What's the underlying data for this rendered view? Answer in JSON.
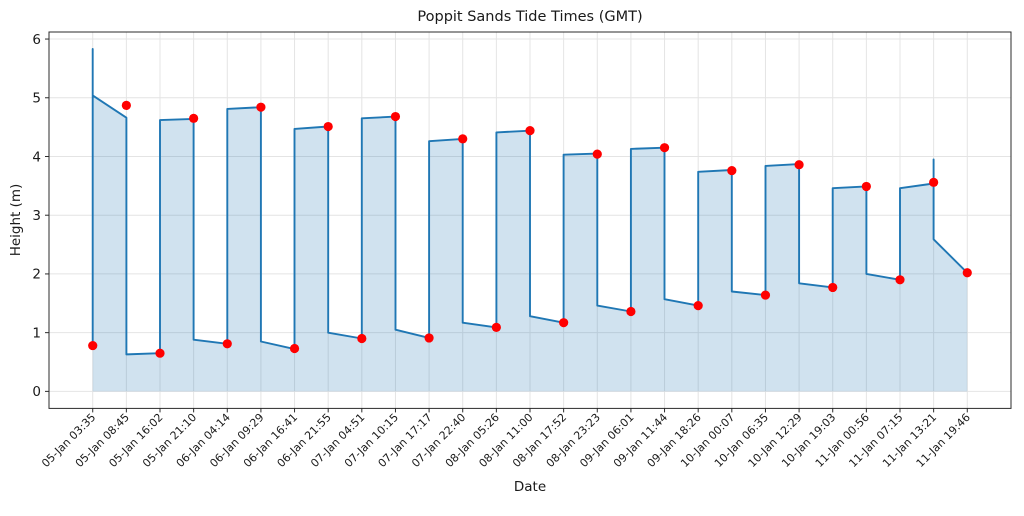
{
  "chart_data": {
    "type": "line",
    "title": "Poppit Sands Tide Times (GMT)",
    "xlabel": "Date",
    "ylabel": "Height (m)",
    "grid": true,
    "legend": false,
    "ylim": [
      -0.29,
      6.12
    ],
    "yticks": [
      0,
      1,
      2,
      3,
      4,
      5,
      6
    ],
    "x_margin": 1.3,
    "categories": [
      "05-Jan 03:35",
      "05-Jan 08:45",
      "05-Jan 16:02",
      "05-Jan 21:10",
      "06-Jan 04:14",
      "06-Jan 09:29",
      "06-Jan 16:41",
      "06-Jan 21:55",
      "07-Jan 04:51",
      "07-Jan 10:15",
      "07-Jan 17:17",
      "07-Jan 22:40",
      "08-Jan 05:26",
      "08-Jan 11:00",
      "08-Jan 17:52",
      "08-Jan 23:23",
      "09-Jan 06:01",
      "09-Jan 11:44",
      "09-Jan 18:26",
      "10-Jan 00:07",
      "10-Jan 06:35",
      "10-Jan 12:29",
      "10-Jan 19:03",
      "11-Jan 00:56",
      "11-Jan 07:15",
      "11-Jan 13:21",
      "11-Jan 19:46"
    ],
    "series": [
      {
        "name": "tide-height-line",
        "type": "area-line",
        "color": "#1f77b4",
        "fill_alpha": 0.21,
        "fill_to": 0,
        "line_width": 1.9,
        "vertices": [
          [
            0,
            0.78
          ],
          [
            0,
            5.83
          ],
          [
            0,
            5.04
          ],
          [
            1,
            4.66
          ],
          [
            1,
            0.63
          ],
          [
            2,
            0.65
          ],
          [
            2,
            4.62
          ],
          [
            3,
            4.64
          ],
          [
            3,
            0.88
          ],
          [
            4,
            0.81
          ],
          [
            4,
            4.81
          ],
          [
            5,
            4.84
          ],
          [
            5,
            0.85
          ],
          [
            6,
            0.72
          ],
          [
            6,
            4.47
          ],
          [
            7,
            4.51
          ],
          [
            7,
            1.0
          ],
          [
            8,
            0.9
          ],
          [
            8,
            4.65
          ],
          [
            9,
            4.68
          ],
          [
            9,
            1.05
          ],
          [
            10,
            0.91
          ],
          [
            10,
            4.26
          ],
          [
            11,
            4.3
          ],
          [
            11,
            1.17
          ],
          [
            12,
            1.09
          ],
          [
            12,
            4.41
          ],
          [
            13,
            4.44
          ],
          [
            13,
            1.28
          ],
          [
            14,
            1.17
          ],
          [
            14,
            4.03
          ],
          [
            15,
            4.05
          ],
          [
            15,
            1.46
          ],
          [
            16,
            1.36
          ],
          [
            16,
            4.13
          ],
          [
            17,
            4.15
          ],
          [
            17,
            1.57
          ],
          [
            18,
            1.46
          ],
          [
            18,
            3.74
          ],
          [
            19,
            3.77
          ],
          [
            19,
            1.7
          ],
          [
            20,
            1.64
          ],
          [
            20,
            3.84
          ],
          [
            21,
            3.87
          ],
          [
            21,
            1.84
          ],
          [
            22,
            1.77
          ],
          [
            22,
            3.46
          ],
          [
            23,
            3.49
          ],
          [
            23,
            2.0
          ],
          [
            24,
            1.9
          ],
          [
            24,
            3.46
          ],
          [
            25,
            3.54
          ],
          [
            25,
            3.95
          ],
          [
            25,
            2.59
          ],
          [
            26,
            2.02
          ]
        ]
      },
      {
        "name": "tide-extremes",
        "type": "scatter",
        "color": "#ff0000",
        "marker_radius": 4.6,
        "values": [
          0.78,
          4.87,
          0.65,
          4.65,
          0.81,
          4.84,
          0.73,
          4.51,
          0.9,
          4.68,
          0.91,
          4.3,
          1.09,
          4.44,
          1.17,
          4.04,
          1.36,
          4.15,
          1.46,
          3.76,
          1.64,
          3.86,
          1.77,
          3.49,
          1.9,
          3.56,
          2.02
        ]
      }
    ],
    "style": {
      "grid_color": "#e4e4e4",
      "spine_color": "#2b2b2b",
      "tick_color": "#2b2b2b",
      "xtick_font_px": 11,
      "ytick_font_px": 13.5
    }
  }
}
